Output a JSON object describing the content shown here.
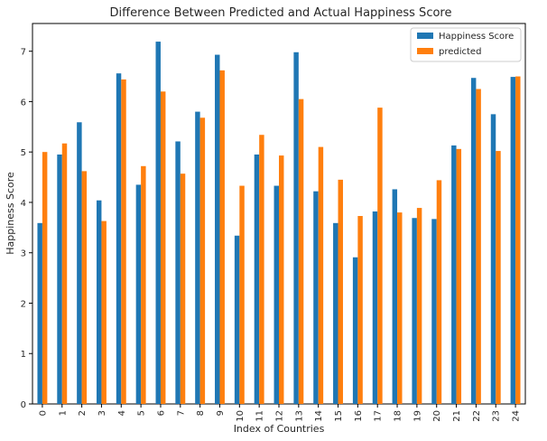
{
  "chart_data": {
    "type": "bar",
    "title": "Difference Between Predicted and Actual Happiness Score",
    "xlabel": "Index of Countries",
    "ylabel": "Happiness Score",
    "ylim": [
      0,
      7.55
    ],
    "yticks": [
      0,
      1,
      2,
      3,
      4,
      5,
      6,
      7
    ],
    "grid": false,
    "legend_position": "top-right",
    "categories": [
      "0",
      "1",
      "2",
      "3",
      "4",
      "5",
      "6",
      "7",
      "8",
      "9",
      "10",
      "11",
      "12",
      "13",
      "14",
      "15",
      "16",
      "17",
      "18",
      "19",
      "20",
      "21",
      "22",
      "23",
      "24"
    ],
    "series": [
      {
        "name": "Happiness Score",
        "color": "#1f77b4",
        "values": [
          3.59,
          4.95,
          5.59,
          4.04,
          6.56,
          4.35,
          7.19,
          5.21,
          5.8,
          6.93,
          3.34,
          4.95,
          4.33,
          6.98,
          4.22,
          3.59,
          2.91,
          3.82,
          4.26,
          3.69,
          3.67,
          5.13,
          6.47,
          5.75,
          6.49
        ]
      },
      {
        "name": "predicted",
        "color": "#ff7f0e",
        "values": [
          5.0,
          5.17,
          4.62,
          3.63,
          6.44,
          4.72,
          6.2,
          4.57,
          5.68,
          6.62,
          4.33,
          5.34,
          4.93,
          6.05,
          5.1,
          4.45,
          3.73,
          5.88,
          3.8,
          3.89,
          4.44,
          5.06,
          6.25,
          5.02,
          6.5
        ]
      }
    ]
  }
}
